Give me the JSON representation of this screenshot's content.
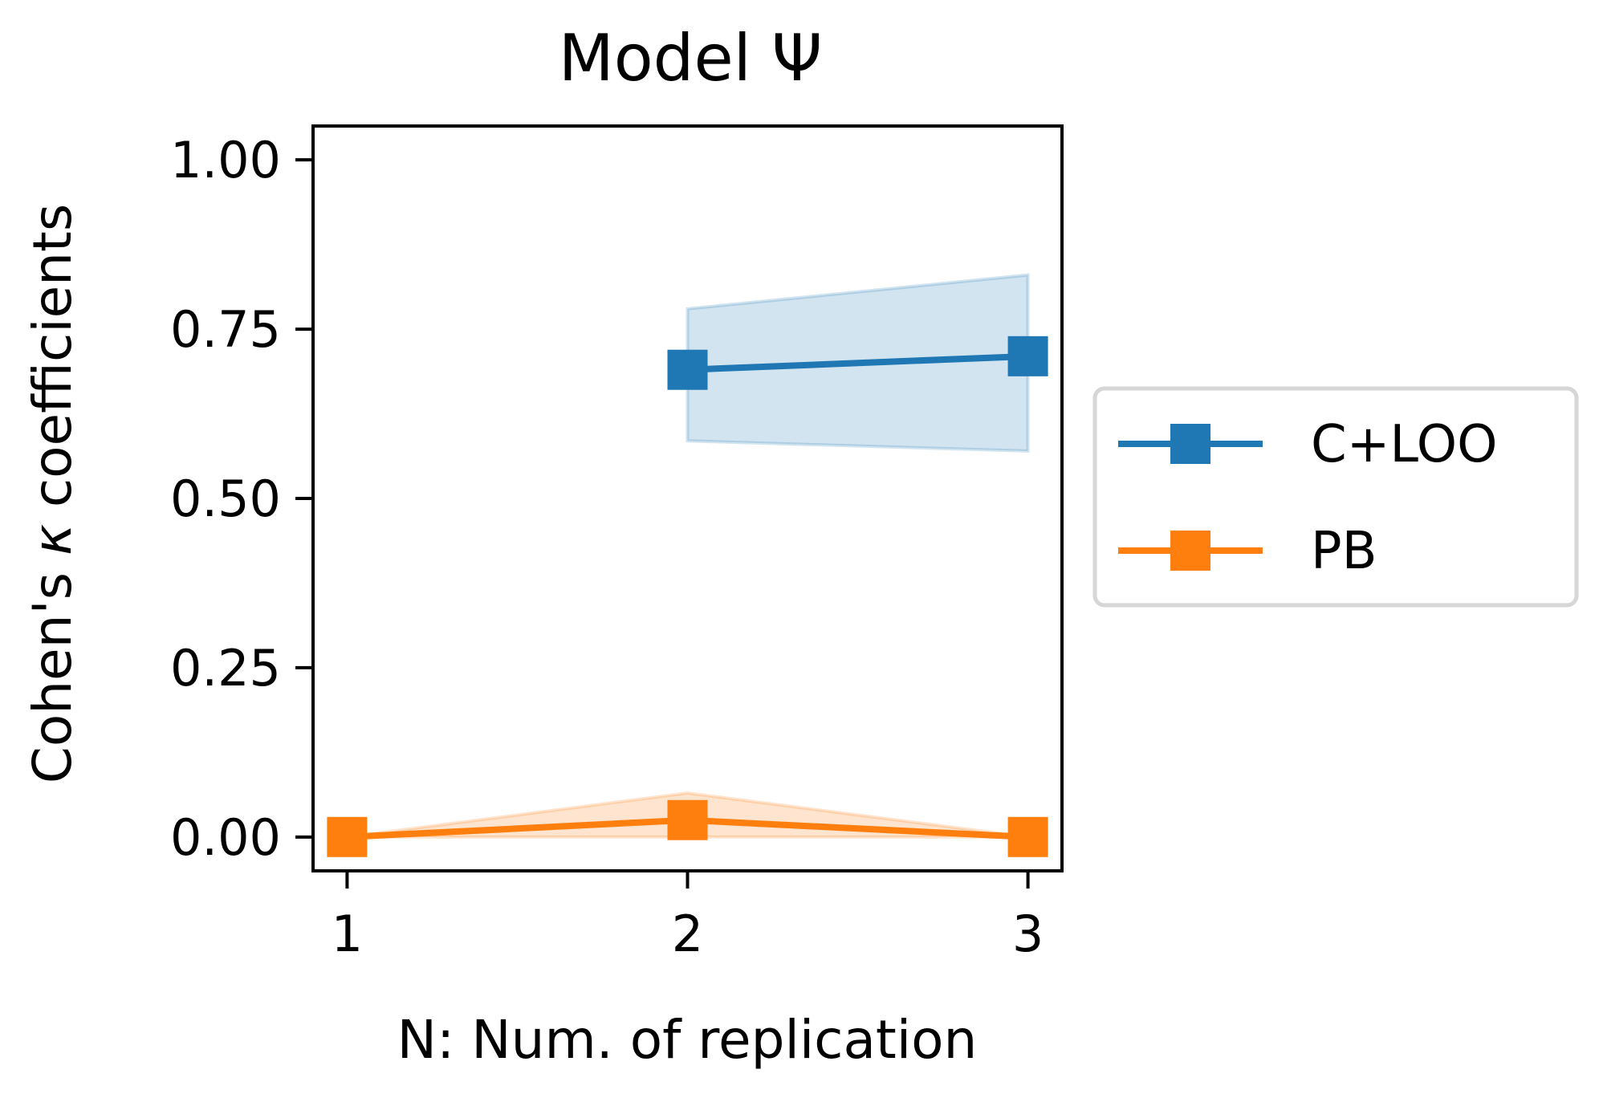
{
  "chart_data": {
    "type": "line",
    "title": "Model Ψ",
    "xlabel": "N: Num. of replication",
    "ylabel_prefix": "Cohen's ",
    "ylabel_kappa": "κ",
    "ylabel_suffix": " coefficients",
    "x": [
      1,
      2,
      3
    ],
    "x_ticks": [
      "1",
      "2",
      "3"
    ],
    "xlim": [
      0.9,
      3.1
    ],
    "y_ticks": [
      "0.00",
      "0.25",
      "0.50",
      "0.75",
      "1.00"
    ],
    "ylim": [
      -0.05,
      1.05
    ],
    "grid": false,
    "legend_position": "right-outside",
    "series": [
      {
        "name": "C+LOO",
        "color": "#1f77b4",
        "marker": "square",
        "points": [
          {
            "x": 2,
            "y": 0.69
          },
          {
            "x": 3,
            "y": 0.71
          }
        ],
        "band": [
          {
            "x": 2,
            "low": 0.585,
            "high": 0.78
          },
          {
            "x": 3,
            "low": 0.57,
            "high": 0.83
          }
        ]
      },
      {
        "name": "PB",
        "color": "#ff7f0e",
        "marker": "square",
        "points": [
          {
            "x": 1,
            "y": 0.0
          },
          {
            "x": 2,
            "y": 0.025
          },
          {
            "x": 3,
            "y": 0.0
          }
        ],
        "band": [
          {
            "x": 1,
            "low": 0.0,
            "high": 0.0
          },
          {
            "x": 2,
            "low": 0.0,
            "high": 0.065
          },
          {
            "x": 3,
            "low": 0.0,
            "high": 0.0
          }
        ]
      }
    ]
  }
}
